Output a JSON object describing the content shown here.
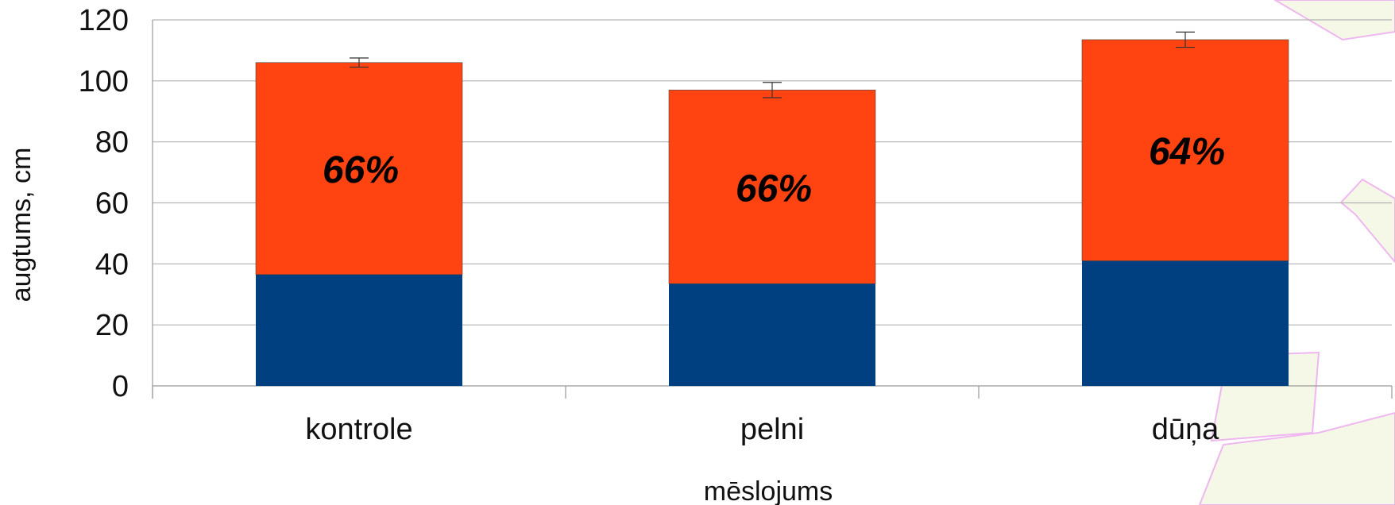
{
  "chart_data": {
    "type": "bar",
    "stacked": true,
    "title": "",
    "xlabel": "mēslojums",
    "ylabel": "augtums, cm",
    "ylim": [
      0,
      120
    ],
    "yticks": [
      0,
      20,
      40,
      60,
      80,
      100,
      120
    ],
    "grid": true,
    "legend": "none",
    "categories": [
      "kontrole",
      "pelni",
      "dūņa"
    ],
    "series": [
      {
        "color": "#003f80",
        "values": [
          36.5,
          33.5,
          41
        ]
      },
      {
        "color": "#ff4412",
        "values": [
          69.5,
          63.5,
          72.5
        ]
      }
    ],
    "totals": [
      106,
      97,
      113.5
    ],
    "error_bars": [
      1.5,
      2.5,
      2.5
    ],
    "annotations": [
      "66%",
      "66%",
      "64%"
    ],
    "annotation_y": [
      71,
      65,
      77
    ]
  }
}
